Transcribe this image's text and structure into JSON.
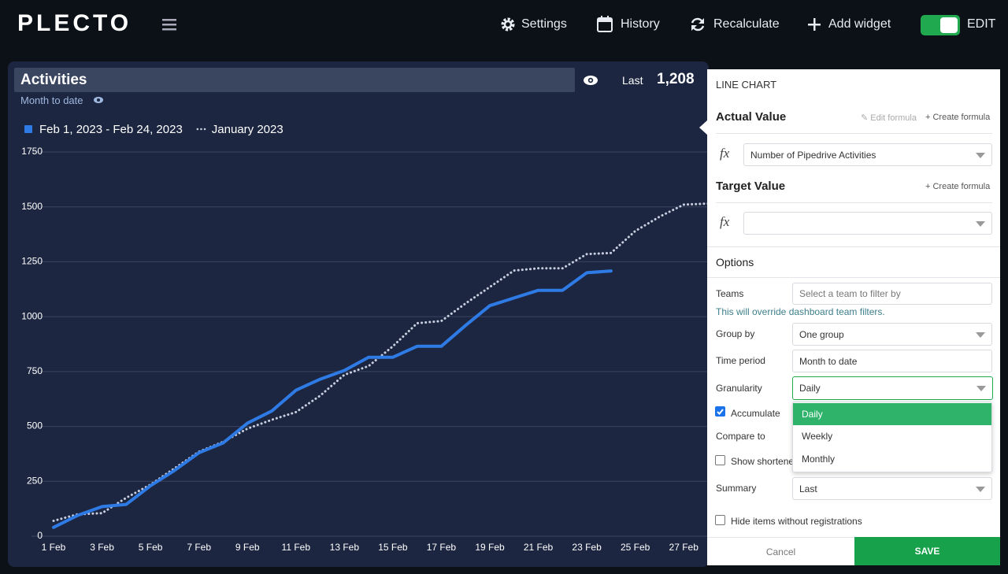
{
  "header": {
    "logo": "PLECTO",
    "menu": [
      "Settings",
      "History",
      "Recalculate",
      "Add widget"
    ],
    "edit": "EDIT"
  },
  "widget": {
    "title": "Activities",
    "period": "Month to date",
    "summary_label": "Last",
    "summary_value": "1,208"
  },
  "chart_data": {
    "type": "line",
    "x": [
      1,
      2,
      3,
      4,
      5,
      6,
      7,
      8,
      9,
      10,
      11,
      12,
      13,
      14,
      15,
      16,
      17,
      18,
      19,
      20,
      21,
      22,
      23,
      24,
      25,
      26,
      27,
      28
    ],
    "series": [
      {
        "name": "Feb 1, 2023 - Feb 24, 2023",
        "color": "#2f7be5",
        "style": "solid",
        "values": [
          40,
          95,
          135,
          145,
          230,
          300,
          380,
          425,
          515,
          570,
          665,
          715,
          755,
          815,
          815,
          865,
          865,
          960,
          1050,
          1085,
          1120,
          1120,
          1200,
          1208,
          null,
          null,
          null,
          null
        ]
      },
      {
        "name": "January 2023",
        "color": "#c8cee0",
        "style": "dotted",
        "values": [
          70,
          100,
          105,
          175,
          235,
          310,
          385,
          430,
          490,
          530,
          565,
          640,
          735,
          775,
          865,
          970,
          980,
          1060,
          1135,
          1210,
          1220,
          1220,
          1285,
          1290,
          1390,
          1455,
          1510,
          1515
        ]
      }
    ],
    "xlim": [
      1,
      28
    ],
    "xticks": [
      {
        "value": 1,
        "label": "1 Feb"
      },
      {
        "value": 3,
        "label": "3 Feb"
      },
      {
        "value": 5,
        "label": "5 Feb"
      },
      {
        "value": 7,
        "label": "7 Feb"
      },
      {
        "value": 9,
        "label": "9 Feb"
      },
      {
        "value": 11,
        "label": "11 Feb"
      },
      {
        "value": 13,
        "label": "13 Feb"
      },
      {
        "value": 15,
        "label": "15 Feb"
      },
      {
        "value": 17,
        "label": "17 Feb"
      },
      {
        "value": 19,
        "label": "19 Feb"
      },
      {
        "value": 21,
        "label": "21 Feb"
      },
      {
        "value": 23,
        "label": "23 Feb"
      },
      {
        "value": 25,
        "label": "25 Feb"
      },
      {
        "value": 27,
        "label": "27 Feb"
      }
    ],
    "ylim": [
      0,
      1750
    ],
    "yticks": [
      0,
      250,
      500,
      750,
      1000,
      1250,
      1500,
      1750
    ],
    "grid": true
  },
  "panel": {
    "title": "LINE CHART",
    "actual_value": "Actual Value",
    "edit_formula": "Edit formula",
    "create_formula": "Create formula",
    "fx": "fx",
    "actual_formula": "Number of Pipedrive Activities",
    "target_value": "Target Value",
    "options": "Options",
    "teams_label": "Teams",
    "teams_placeholder": "Select a team to filter by",
    "teams_note": "This will override dashboard team filters.",
    "group_by_label": "Group by",
    "group_by": "One group",
    "time_period_label": "Time period",
    "time_period": "Month to date",
    "granularity_label": "Granularity",
    "granularity": "Daily",
    "accumulate": "Accumulate",
    "compare_to_label": "Compare to",
    "show_shortened": "Show shortene",
    "granularity_options": [
      "Daily",
      "Weekly",
      "Monthly"
    ],
    "summary_label": "Summary",
    "summary": "Last",
    "hide_items": "Hide items without registrations",
    "cancel": "Cancel",
    "save": "SAVE"
  }
}
